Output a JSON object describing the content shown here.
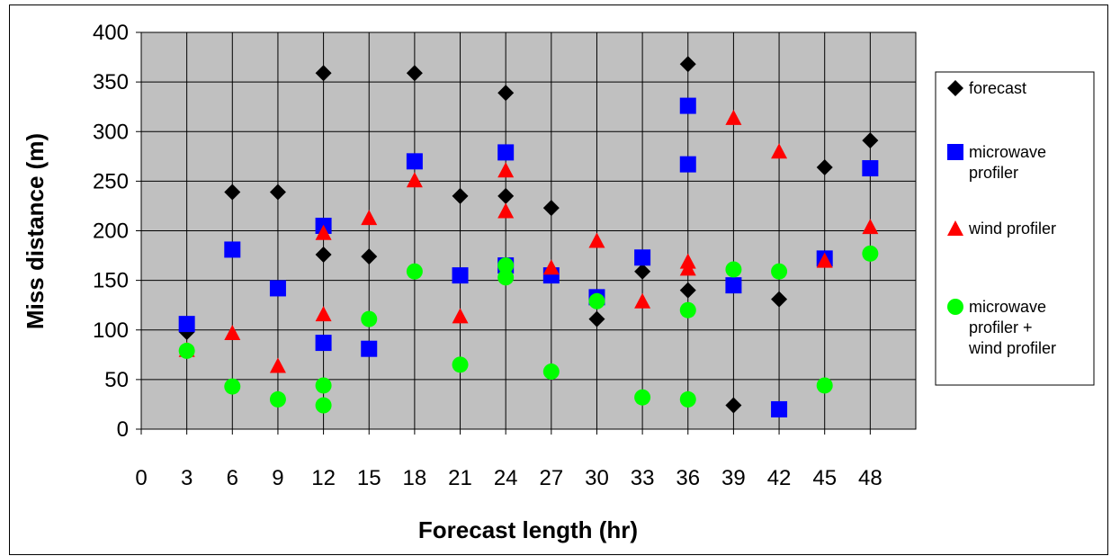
{
  "chart_data": {
    "type": "scatter",
    "title": "",
    "xlabel": "Forecast length (hr)",
    "ylabel": "Miss distance (m)",
    "xlim": [
      0,
      51
    ],
    "ylim": [
      0,
      400
    ],
    "x_ticks": [
      0,
      3,
      6,
      9,
      12,
      15,
      18,
      21,
      24,
      27,
      30,
      33,
      36,
      39,
      42,
      45,
      48
    ],
    "y_ticks": [
      0,
      50,
      100,
      150,
      200,
      250,
      300,
      350,
      400
    ],
    "grid": true,
    "plot_background": "#c0c0c0",
    "legend_position": "right",
    "series": [
      {
        "name": "forecast",
        "marker": "diamond",
        "color": "#000000",
        "legend_lines": [
          "forecast"
        ],
        "points": [
          [
            3,
            98
          ],
          [
            6,
            239
          ],
          [
            9,
            239
          ],
          [
            12,
            359
          ],
          [
            12,
            176
          ],
          [
            15,
            174
          ],
          [
            18,
            359
          ],
          [
            21,
            235
          ],
          [
            24,
            339
          ],
          [
            24,
            235
          ],
          [
            27,
            223
          ],
          [
            30,
            111
          ],
          [
            33,
            159
          ],
          [
            36,
            368
          ],
          [
            36,
            140
          ],
          [
            39,
            24
          ],
          [
            42,
            131
          ],
          [
            45,
            264
          ],
          [
            48,
            291
          ]
        ]
      },
      {
        "name": "microwave profiler",
        "marker": "square",
        "color": "#0000ff",
        "legend_lines": [
          "microwave",
          "profiler"
        ],
        "points": [
          [
            3,
            106
          ],
          [
            6,
            181
          ],
          [
            9,
            142
          ],
          [
            12,
            205
          ],
          [
            12,
            87
          ],
          [
            15,
            81
          ],
          [
            18,
            270
          ],
          [
            21,
            155
          ],
          [
            24,
            279
          ],
          [
            24,
            165
          ],
          [
            27,
            155
          ],
          [
            30,
            133
          ],
          [
            33,
            173
          ],
          [
            36,
            326
          ],
          [
            36,
            267
          ],
          [
            39,
            145
          ],
          [
            42,
            20
          ],
          [
            45,
            172
          ],
          [
            48,
            263
          ]
        ]
      },
      {
        "name": "wind profiler",
        "marker": "triangle",
        "color": "#ff0000",
        "legend_lines": [
          "wind profiler"
        ],
        "points": [
          [
            3,
            80
          ],
          [
            6,
            97
          ],
          [
            9,
            64
          ],
          [
            12,
            198
          ],
          [
            12,
            116
          ],
          [
            15,
            213
          ],
          [
            18,
            251
          ],
          [
            21,
            114
          ],
          [
            24,
            261
          ],
          [
            24,
            220
          ],
          [
            27,
            163
          ],
          [
            30,
            190
          ],
          [
            33,
            129
          ],
          [
            36,
            169
          ],
          [
            36,
            162
          ],
          [
            39,
            314
          ],
          [
            42,
            280
          ],
          [
            45,
            170
          ],
          [
            48,
            204
          ]
        ]
      },
      {
        "name": "microwave profiler + wind profiler",
        "marker": "circle",
        "color": "#00ff00",
        "legend_lines": [
          "microwave",
          "profiler +",
          "wind profiler"
        ],
        "points": [
          [
            3,
            79
          ],
          [
            6,
            43
          ],
          [
            9,
            30
          ],
          [
            12,
            44
          ],
          [
            12,
            24
          ],
          [
            15,
            111
          ],
          [
            18,
            159
          ],
          [
            21,
            65
          ],
          [
            24,
            165
          ],
          [
            24,
            153
          ],
          [
            27,
            58
          ],
          [
            30,
            129
          ],
          [
            33,
            32
          ],
          [
            36,
            120
          ],
          [
            36,
            30
          ],
          [
            39,
            161
          ],
          [
            42,
            159
          ],
          [
            45,
            44
          ],
          [
            48,
            177
          ]
        ]
      }
    ]
  }
}
